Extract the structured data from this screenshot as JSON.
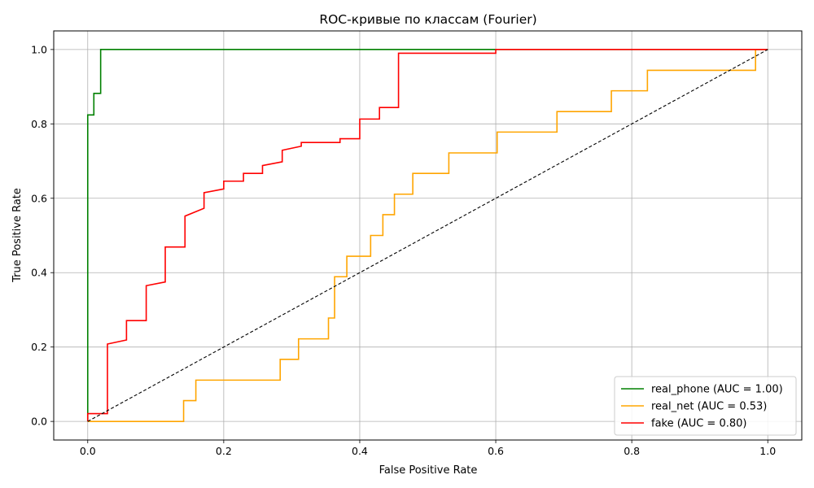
{
  "chart_data": {
    "type": "line",
    "title": "ROC-кривые по классам (Fourier)",
    "xlabel": "False Positive Rate",
    "ylabel": "True Positive Rate",
    "xlim": [
      -0.05,
      1.05
    ],
    "ylim": [
      -0.05,
      1.05
    ],
    "xticks": [
      "0.0",
      "0.2",
      "0.4",
      "0.6",
      "0.8",
      "1.0"
    ],
    "yticks": [
      "0.0",
      "0.2",
      "0.4",
      "0.6",
      "0.8",
      "1.0"
    ],
    "grid": true,
    "legend_position": "lower-right",
    "series": [
      {
        "name": "real_phone (AUC = 1.00)",
        "color": "#008000",
        "x": [
          0.0,
          0.0,
          0.009,
          0.009,
          0.019,
          0.019,
          1.0
        ],
        "y": [
          0.0,
          0.824,
          0.824,
          0.882,
          0.882,
          1.0,
          1.0
        ]
      },
      {
        "name": "real_net (AUC = 0.53)",
        "color": "#FFA500",
        "x": [
          0.0,
          0.141,
          0.141,
          0.159,
          0.159,
          0.283,
          0.283,
          0.31,
          0.31,
          0.354,
          0.354,
          0.363,
          0.363,
          0.372,
          0.372,
          0.381,
          0.381,
          0.407,
          0.407,
          0.416,
          0.416,
          0.434,
          0.434,
          0.451,
          0.451,
          0.469,
          0.469,
          0.478,
          0.478,
          0.513,
          0.513,
          0.531,
          0.531,
          0.602,
          0.602,
          0.681,
          0.681,
          0.69,
          0.69,
          0.77,
          0.77,
          0.814,
          0.814,
          0.823,
          0.823,
          0.982,
          0.982,
          1.0
        ],
        "y": [
          0.0,
          0.0,
          0.056,
          0.056,
          0.111,
          0.111,
          0.167,
          0.167,
          0.222,
          0.222,
          0.278,
          0.278,
          0.389,
          0.389,
          0.389,
          0.389,
          0.444,
          0.444,
          0.444,
          0.444,
          0.5,
          0.5,
          0.556,
          0.556,
          0.611,
          0.611,
          0.611,
          0.611,
          0.667,
          0.667,
          0.667,
          0.667,
          0.722,
          0.722,
          0.778,
          0.778,
          0.778,
          0.778,
          0.833,
          0.833,
          0.889,
          0.889,
          0.889,
          0.889,
          0.944,
          0.944,
          1.0,
          1.0
        ]
      },
      {
        "name": "fake (AUC = 0.80)",
        "color": "#FF0000",
        "x": [
          0.0,
          0.0,
          0.029,
          0.029,
          0.057,
          0.057,
          0.086,
          0.086,
          0.114,
          0.114,
          0.143,
          0.143,
          0.171,
          0.171,
          0.2,
          0.2,
          0.229,
          0.229,
          0.257,
          0.257,
          0.286,
          0.286,
          0.314,
          0.314,
          0.371,
          0.371,
          0.4,
          0.4,
          0.429,
          0.429,
          0.457,
          0.457,
          0.6,
          0.6,
          1.0
        ],
        "y": [
          0.0,
          0.021,
          0.021,
          0.208,
          0.219,
          0.271,
          0.271,
          0.365,
          0.375,
          0.469,
          0.469,
          0.552,
          0.573,
          0.615,
          0.625,
          0.646,
          0.646,
          0.667,
          0.667,
          0.688,
          0.698,
          0.729,
          0.74,
          0.75,
          0.75,
          0.76,
          0.76,
          0.813,
          0.813,
          0.844,
          0.844,
          0.99,
          0.99,
          1.0,
          1.0
        ]
      }
    ],
    "diagonal": {
      "color": "#000000",
      "x": [
        0,
        1
      ],
      "y": [
        0,
        1
      ]
    }
  }
}
